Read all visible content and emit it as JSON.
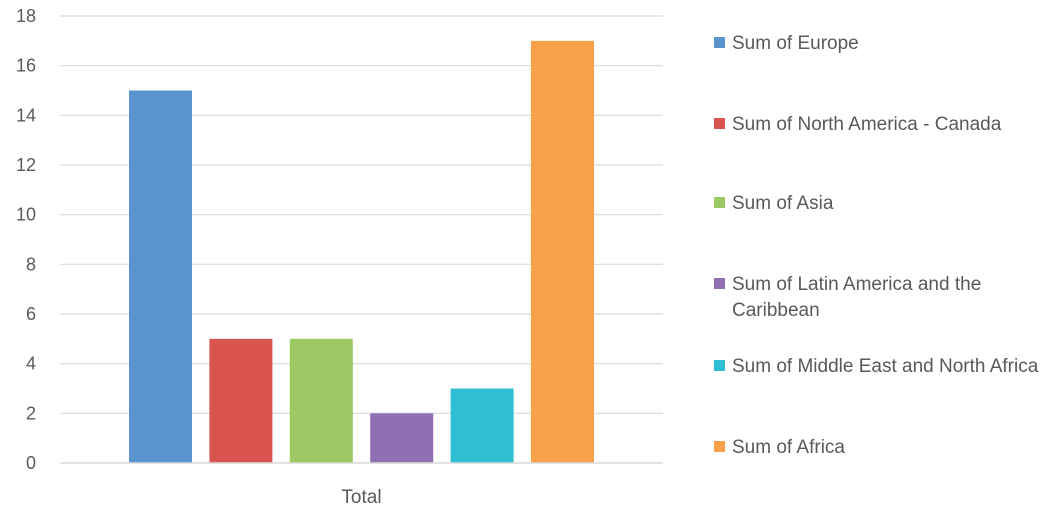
{
  "chart_data": {
    "type": "bar",
    "categories": [
      "Total"
    ],
    "series": [
      {
        "name": "Sum of Europe",
        "values": [
          15
        ],
        "color": "#5B93CF"
      },
      {
        "name": "Sum of North America - Canada",
        "values": [
          5
        ],
        "color": "#D9534F"
      },
      {
        "name": "Sum of Asia",
        "values": [
          5
        ],
        "color": "#9BC863"
      },
      {
        "name": "Sum of Latin America and the Caribbean",
        "values": [
          2
        ],
        "color": "#9070B3"
      },
      {
        "name": "Sum of Middle East and North Africa",
        "values": [
          3
        ],
        "color": "#30BFD2"
      },
      {
        "name": "Sum of Africa",
        "values": [
          17
        ],
        "color": "#F9A04A"
      }
    ],
    "yticks": [
      "0",
      "2",
      "4",
      "6",
      "8",
      "10",
      "12",
      "14",
      "16",
      "18"
    ],
    "ylim": [
      0,
      18
    ],
    "title": "",
    "xlabel": "",
    "ylabel": "",
    "grid": true,
    "legend_position": "right"
  }
}
